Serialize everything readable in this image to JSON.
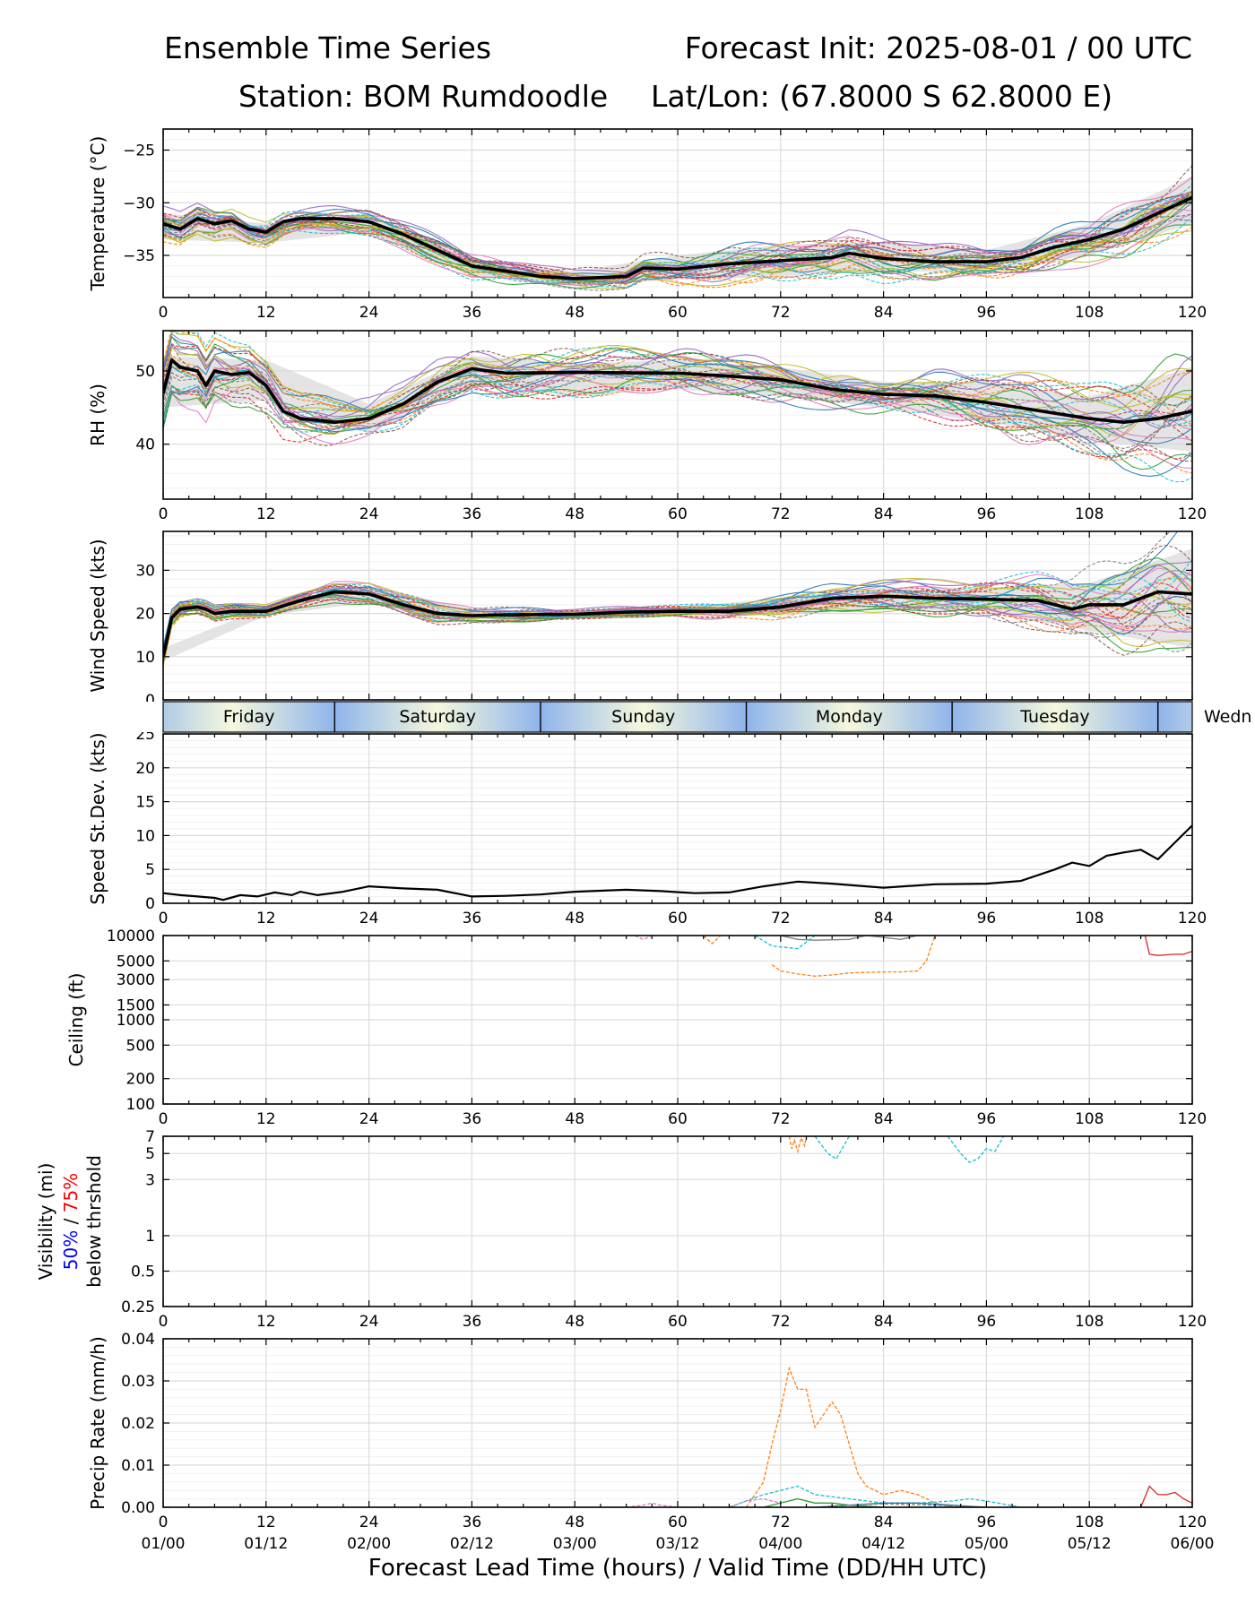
{
  "header": {
    "title": "Ensemble Time Series",
    "init": "Forecast Init: 2025-08-01 / 00 UTC",
    "station": "Station: BOM Rumdoodle",
    "latlon": "Lat/Lon: (67.8000 S 62.8000 E)"
  },
  "chart_data": [
    {
      "type": "line",
      "panel": "temperature",
      "ylabel": "Temperature (°C)",
      "ylim": [
        -39,
        -23
      ],
      "yticks": [
        -25,
        -30,
        -35
      ],
      "xlim": [
        0,
        120
      ],
      "xticks": [
        0,
        12,
        24,
        36,
        48,
        60,
        72,
        84,
        96,
        108,
        120
      ],
      "grid": true,
      "ensemble_mean": {
        "x": [
          0,
          2,
          4,
          6,
          8,
          10,
          12,
          14,
          16,
          20,
          24,
          28,
          32,
          36,
          40,
          44,
          48,
          54,
          56,
          60,
          66,
          72,
          78,
          80,
          84,
          90,
          96,
          100,
          104,
          108,
          112,
          116,
          120
        ],
        "y": [
          -32,
          -32.5,
          -31.5,
          -32,
          -31.7,
          -32.5,
          -32.8,
          -31.8,
          -31.5,
          -31.5,
          -31.8,
          -33,
          -34.5,
          -36,
          -36.5,
          -37,
          -37.2,
          -37,
          -36.2,
          -36.3,
          -35.8,
          -35.5,
          -35.2,
          -34.8,
          -35.3,
          -35.6,
          -35.6,
          -35.2,
          -34.2,
          -33.5,
          -32.5,
          -31,
          -29.5
        ]
      },
      "spread": {
        "x": [
          0,
          12,
          24,
          36,
          48,
          60,
          72,
          84,
          96,
          108,
          120
        ],
        "low": [
          -33.5,
          -33.8,
          -32.8,
          -37,
          -37.8,
          -37.3,
          -37,
          -36.5,
          -36.6,
          -35,
          -32
        ],
        "high": [
          -31,
          -32,
          -31,
          -35.3,
          -36.5,
          -35,
          -34,
          -33.7,
          -34.5,
          -32,
          -27.5
        ]
      }
    },
    {
      "type": "line",
      "panel": "rh",
      "ylabel": "RH (%)",
      "ylim": [
        32.5,
        55.5
      ],
      "yticks": [
        40,
        50
      ],
      "xlim": [
        0,
        120
      ],
      "xticks": [
        0,
        12,
        24,
        36,
        48,
        60,
        72,
        84,
        96,
        108,
        120
      ],
      "grid": true,
      "ensemble_mean": {
        "x": [
          0,
          1,
          2,
          4,
          5,
          6,
          8,
          10,
          12,
          14,
          16,
          20,
          24,
          28,
          32,
          36,
          40,
          48,
          60,
          66,
          72,
          78,
          84,
          90,
          96,
          102,
          108,
          112,
          116,
          120
        ],
        "y": [
          47,
          51.5,
          50.5,
          50,
          48,
          50,
          49.5,
          49.8,
          48,
          44.5,
          43.5,
          43,
          43.5,
          45.5,
          48.5,
          50.3,
          49.7,
          49.8,
          49.7,
          49.3,
          48.8,
          47.5,
          46.8,
          46.6,
          45.7,
          44.6,
          43.5,
          43,
          43.5,
          44.5
        ]
      },
      "spread": {
        "x": [
          0,
          12,
          24,
          36,
          48,
          60,
          72,
          84,
          96,
          108,
          120
        ],
        "low": [
          45,
          46,
          41.5,
          48,
          46.5,
          47.5,
          46.5,
          45,
          43,
          40.5,
          39
        ],
        "high": [
          52,
          51.5,
          45.5,
          52,
          51,
          51.5,
          50.5,
          48.5,
          48.5,
          46.5,
          50.5
        ]
      }
    },
    {
      "type": "line",
      "panel": "wind_speed",
      "ylabel": "Wind Speed (kts)",
      "ylim": [
        0,
        39
      ],
      "yticks": [
        0,
        10,
        20,
        30
      ],
      "xlim": [
        0,
        120
      ],
      "xticks": [
        0,
        12,
        24,
        36,
        48,
        60,
        72,
        84,
        96,
        108,
        120
      ],
      "grid": true,
      "ensemble_mean": {
        "x": [
          0,
          1,
          2,
          4,
          5,
          6,
          8,
          12,
          16,
          20,
          24,
          28,
          32,
          36,
          40,
          48,
          54,
          60,
          66,
          72,
          78,
          84,
          90,
          96,
          102,
          106,
          108,
          112,
          116,
          120
        ],
        "y": [
          10,
          19,
          21,
          21.5,
          21,
          20,
          20.5,
          20.5,
          23,
          25,
          24.5,
          22,
          20,
          19.5,
          19.7,
          19.8,
          20.3,
          20.5,
          20.5,
          21.5,
          23.5,
          24,
          23.5,
          23.3,
          23,
          21,
          22,
          22,
          25,
          24.5
        ]
      },
      "spread": {
        "x": [
          0,
          12,
          24,
          36,
          48,
          60,
          72,
          84,
          96,
          108,
          120
        ],
        "low": [
          9,
          19.5,
          22.5,
          18.5,
          19,
          19.5,
          19.5,
          21,
          20.5,
          16,
          12
        ],
        "high": [
          12,
          21.5,
          26.5,
          21,
          20.5,
          21.5,
          23.5,
          26,
          26,
          27,
          35
        ]
      }
    },
    {
      "type": "line",
      "panel": "speed_stdev",
      "ylabel": "Speed St.Dev. (kts)",
      "ylim": [
        0,
        25
      ],
      "yticks": [
        0,
        5,
        10,
        15,
        20,
        25
      ],
      "xlim": [
        0,
        120
      ],
      "xticks": [
        0,
        12,
        24,
        36,
        48,
        60,
        72,
        84,
        96,
        108,
        120
      ],
      "grid": true,
      "series": [
        {
          "x": [
            0,
            2,
            4,
            6,
            7,
            9,
            11,
            13,
            15,
            16,
            18,
            21,
            24,
            28,
            32,
            36,
            40,
            44,
            48,
            54,
            58,
            62,
            66,
            70,
            74,
            78,
            84,
            90,
            96,
            100,
            104,
            106,
            108,
            110,
            112,
            114,
            116,
            118,
            120
          ],
          "y": [
            1.5,
            1.2,
            1.0,
            0.8,
            0.5,
            1.2,
            1.0,
            1.6,
            1.2,
            1.7,
            1.2,
            1.7,
            2.5,
            2.2,
            2.0,
            1.0,
            1.1,
            1.3,
            1.7,
            2.0,
            1.8,
            1.5,
            1.6,
            2.5,
            3.2,
            2.9,
            2.3,
            2.8,
            2.9,
            3.3,
            5.0,
            6.0,
            5.5,
            7.0,
            7.5,
            7.9,
            6.5,
            9.0,
            11.5
          ]
        }
      ]
    },
    {
      "type": "line",
      "panel": "ceiling",
      "ylabel": "Ceiling (ft)",
      "yscale": "log",
      "ylim": [
        100,
        10000
      ],
      "yticks": [
        100,
        200,
        500,
        1000,
        1500,
        3000,
        5000,
        10000
      ],
      "xlim": [
        0,
        120
      ],
      "xticks": [
        0,
        12,
        24,
        36,
        48,
        60,
        72,
        84,
        96,
        108,
        120
      ],
      "grid": true,
      "series": [
        {
          "color": "#ff7f0e",
          "dashed": true,
          "x": [
            71,
            72,
            74,
            76,
            78,
            80,
            84,
            86,
            88,
            89,
            90
          ],
          "y": [
            4500,
            3800,
            3500,
            3300,
            3400,
            3600,
            3700,
            3700,
            3800,
            5000,
            10000
          ]
        },
        {
          "color": "#7f7f7f",
          "dashed": false,
          "x": [
            72,
            74,
            76,
            80,
            82,
            84,
            86,
            88,
            90
          ],
          "y": [
            10000,
            9000,
            8800,
            9000,
            10000,
            9500,
            9000,
            10000,
            10000
          ]
        },
        {
          "color": "#d62728",
          "dashed": false,
          "x": [
            114.5,
            115,
            116,
            118,
            119,
            120
          ],
          "y": [
            10000,
            6000,
            5800,
            6000,
            6000,
            6500
          ]
        },
        {
          "color": "#e377c2",
          "dashed": true,
          "x": [
            55,
            56,
            57
          ],
          "y": [
            10000,
            9000,
            10000
          ]
        },
        {
          "color": "#ff7f0e",
          "dashed": true,
          "x": [
            63,
            64,
            65
          ],
          "y": [
            10000,
            8000,
            10000
          ]
        },
        {
          "color": "#17becf",
          "dashed": true,
          "x": [
            69,
            71,
            74,
            76
          ],
          "y": [
            10000,
            7500,
            7000,
            10000
          ]
        }
      ]
    },
    {
      "type": "line",
      "panel": "visibility",
      "ylabel": "Visibility (mi)",
      "ylabel_sub_prefix": "50%",
      "ylabel_sub_sep": " / ",
      "ylabel_sub_suffix": "75%",
      "ylabel_sub_colors": [
        "#0000ff",
        "#ff0000"
      ],
      "ylabel_sub2": "below thrshold",
      "yscale": "log",
      "ylim": [
        0.25,
        7
      ],
      "yticks": [
        0.25,
        0.5,
        1,
        3,
        5,
        7
      ],
      "xlim": [
        0,
        120
      ],
      "xticks": [
        0,
        12,
        24,
        36,
        48,
        60,
        72,
        84,
        96,
        108,
        120
      ],
      "grid": true,
      "series": [
        {
          "color": "#ff7f0e",
          "dashed": true,
          "x": [
            73,
            73.3,
            73.6,
            74,
            74.4,
            74.8,
            75
          ],
          "y": [
            7,
            5.5,
            6.5,
            5.2,
            6.8,
            5.8,
            7
          ]
        },
        {
          "color": "#17becf",
          "dashed": true,
          "x": [
            76,
            77.5,
            78.5,
            80
          ],
          "y": [
            7,
            5.0,
            4.5,
            7
          ]
        },
        {
          "color": "#17becf",
          "dashed": true,
          "x": [
            91.5,
            93,
            94,
            95,
            96,
            97,
            98
          ],
          "y": [
            7,
            5.0,
            4.2,
            4.5,
            5.5,
            5.2,
            7
          ]
        }
      ]
    },
    {
      "type": "line",
      "panel": "precip_rate",
      "ylabel": "Precip Rate (mm/h)",
      "ylim": [
        0,
        0.04
      ],
      "yticks": [
        0.0,
        0.01,
        0.02,
        0.03,
        0.04
      ],
      "xlim": [
        0,
        120
      ],
      "xticks": [
        0,
        12,
        24,
        36,
        48,
        60,
        72,
        84,
        96,
        108,
        120
      ],
      "xticklabels_valid": [
        "01/00",
        "01/12",
        "02/00",
        "02/12",
        "03/00",
        "03/12",
        "04/00",
        "04/12",
        "05/00",
        "05/12",
        "06/00"
      ],
      "grid": true,
      "series": [
        {
          "color": "#ff7f0e",
          "dashed": true,
          "x": [
            68,
            70,
            71,
            72,
            73,
            74,
            75,
            76,
            77,
            78,
            79,
            80,
            81,
            82,
            83,
            84,
            86,
            88,
            90,
            92
          ],
          "y": [
            0.0,
            0.006,
            0.015,
            0.023,
            0.033,
            0.028,
            0.028,
            0.019,
            0.022,
            0.025,
            0.022,
            0.015,
            0.008,
            0.005,
            0.004,
            0.003,
            0.004,
            0.003,
            0.001,
            0.0
          ]
        },
        {
          "color": "#17becf",
          "dashed": true,
          "x": [
            66,
            70,
            72,
            74,
            76,
            80,
            84,
            88,
            92,
            94,
            96,
            100
          ],
          "y": [
            0.0,
            0.003,
            0.004,
            0.005,
            0.003,
            0.002,
            0.001,
            0.001,
            0.0015,
            0.002,
            0.0015,
            0.0
          ]
        },
        {
          "color": "#d62728",
          "dashed": false,
          "x": [
            113,
            114,
            115,
            116,
            117,
            118,
            119,
            120
          ],
          "y": [
            0.0,
            0.0,
            0.005,
            0.003,
            0.003,
            0.0035,
            0.002,
            0.001
          ]
        },
        {
          "color": "#e377c2",
          "dashed": true,
          "x": [
            54,
            56,
            57,
            58,
            60,
            66,
            68,
            70,
            72
          ],
          "y": [
            0.0,
            0.0005,
            0.001,
            0.0005,
            0.0,
            0.0,
            0.0015,
            0.002,
            0.001
          ]
        },
        {
          "color": "#2ca02c",
          "dashed": false,
          "x": [
            70,
            72,
            74,
            76,
            78,
            80,
            84
          ],
          "y": [
            0.0,
            0.001,
            0.002,
            0.001,
            0.001,
            0.0005,
            0.0
          ]
        },
        {
          "color": "#1f77b4",
          "dashed": false,
          "x": [
            76,
            80,
            84,
            88,
            92,
            96
          ],
          "y": [
            0.0,
            0.0005,
            0.001,
            0.001,
            0.0005,
            0.0
          ]
        },
        {
          "color": "#7f7f7f",
          "dashed": true,
          "x": [
            76,
            80,
            84,
            90,
            96
          ],
          "y": [
            0.0,
            0.0005,
            0.0008,
            0.0005,
            0.0
          ]
        }
      ]
    }
  ],
  "day_band": {
    "labels": [
      "Friday",
      "Saturday",
      "Sunday",
      "Monday",
      "Tuesday",
      "Wedn"
    ],
    "boundaries_hours": [
      20,
      44,
      68,
      92,
      116
    ],
    "colors": [
      "#8fb4ec",
      "#f5f8dc"
    ]
  },
  "member_colors": [
    "#1f77b4",
    "#ff7f0e",
    "#2ca02c",
    "#d62728",
    "#9467bd",
    "#8c564b",
    "#e377c2",
    "#7f7f7f",
    "#bcbd22",
    "#17becf"
  ],
  "xlabel": "Forecast Lead Time (hours) / Valid Time (DD/HH UTC)"
}
